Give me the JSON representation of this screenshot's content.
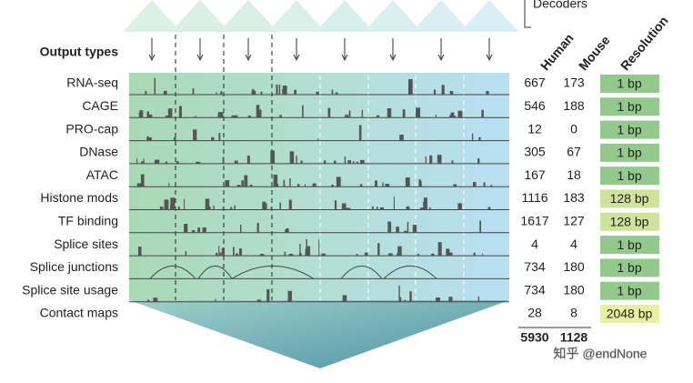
{
  "header": {
    "decoders_label": "Decoders",
    "output_types_label": "Output types"
  },
  "columns": [
    "Human",
    "Mouse",
    "Resolution"
  ],
  "rows": [
    {
      "label": "RNA-seq",
      "human": 667,
      "mouse": 173,
      "resolution": "1 bp",
      "color": "#94c98e"
    },
    {
      "label": "CAGE",
      "human": 546,
      "mouse": 188,
      "resolution": "1 bp",
      "color": "#94c98e"
    },
    {
      "label": "PRO-cap",
      "human": 12,
      "mouse": 0,
      "resolution": "1 bp",
      "color": "#94c98e"
    },
    {
      "label": "DNase",
      "human": 305,
      "mouse": 67,
      "resolution": "1 bp",
      "color": "#94c98e"
    },
    {
      "label": "ATAC",
      "human": 167,
      "mouse": 18,
      "resolution": "1 bp",
      "color": "#94c98e"
    },
    {
      "label": "Histone mods",
      "human": 1116,
      "mouse": 183,
      "resolution": "128 bp",
      "color": "#cde49a"
    },
    {
      "label": "TF binding",
      "human": 1617,
      "mouse": 127,
      "resolution": "128 bp",
      "color": "#cde49a"
    },
    {
      "label": "Splice sites",
      "human": 4,
      "mouse": 4,
      "resolution": "1 bp",
      "color": "#94c98e"
    },
    {
      "label": "Splice junctions",
      "human": 734,
      "mouse": 180,
      "resolution": "1 bp",
      "color": "#94c98e"
    },
    {
      "label": "Splice site usage",
      "human": 734,
      "mouse": 180,
      "resolution": "1 bp",
      "color": "#94c98e"
    },
    {
      "label": "Contact maps",
      "human": 28,
      "mouse": 8,
      "resolution": "2048 bp",
      "color": "#eaf0a2"
    }
  ],
  "totals": {
    "human": 5930,
    "mouse": 1128
  },
  "watermark": "知乎 @endNone"
}
